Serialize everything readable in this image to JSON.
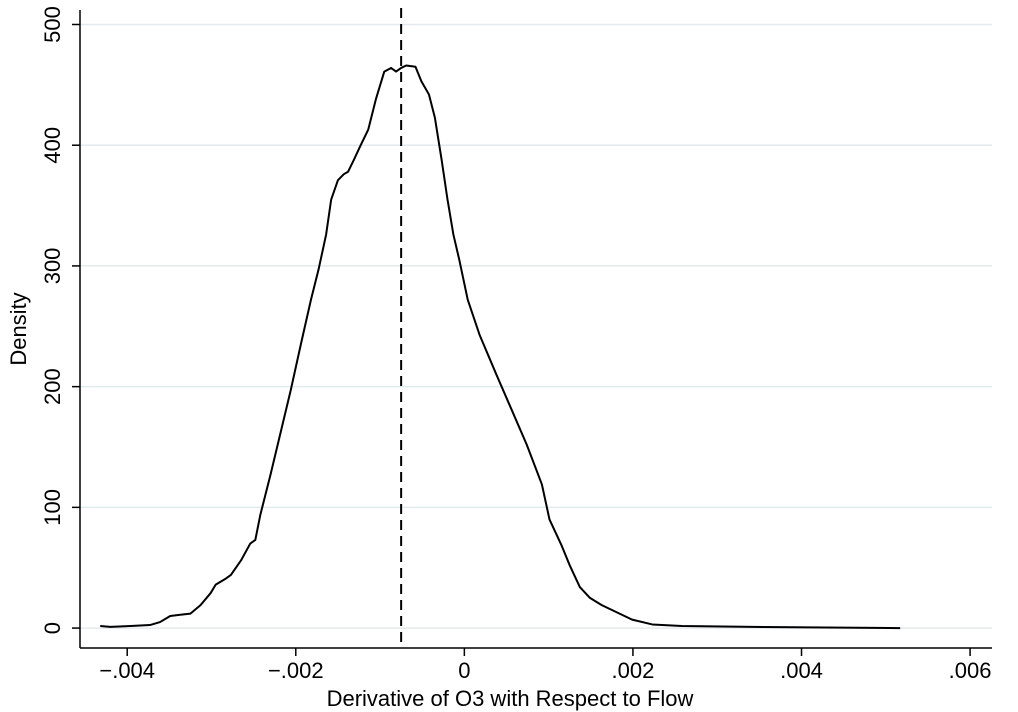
{
  "chart_data": {
    "type": "line",
    "xlabel": "Derivative of O3 with Respect to Flow",
    "ylabel": "Density",
    "xlim": [
      -0.00456,
      0.00626
    ],
    "ylim": [
      -16.5,
      512
    ],
    "xticks": [
      {
        "value": -0.004,
        "label": "−.004"
      },
      {
        "value": -0.002,
        "label": "−.002"
      },
      0,
      {
        "value": 0.002,
        "label": ".002"
      },
      {
        "value": 0.004,
        "label": ".004"
      },
      {
        "value": 0.006,
        "label": ".006"
      }
    ],
    "yticks": [
      0,
      100,
      200,
      300,
      400,
      500
    ],
    "grid": true,
    "reference_line": {
      "x": -0.00075,
      "style": "dashed",
      "color": "#000000"
    },
    "series": [
      {
        "color": "#000000",
        "x": [
          -0.00432,
          -0.0042,
          -0.00396,
          -0.00373,
          -0.00361,
          -0.00349,
          -0.00337,
          -0.00325,
          -0.00313,
          -0.00301,
          -0.00295,
          -0.00283,
          -0.00277,
          -0.00265,
          -0.00254,
          -0.00248,
          -0.00242,
          -0.0023,
          -0.00218,
          -0.00206,
          -0.00194,
          -0.00182,
          -0.00173,
          -0.00164,
          -0.00158,
          -0.0015,
          -0.00143,
          -0.00138,
          -0.00131,
          -0.00123,
          -0.00114,
          -0.00105,
          -0.00095,
          -0.00087,
          -0.00081,
          -0.00075,
          -0.00069,
          -0.00058,
          -0.00051,
          -0.00042,
          -0.00035,
          -0.00027,
          -0.0002,
          -0.00013,
          -6e-05,
          4e-05,
          0.00018,
          0.00038,
          0.00056,
          0.00074,
          0.00092,
          0.00101,
          0.00107,
          0.00115,
          0.00125,
          0.00137,
          0.00149,
          0.00163,
          0.00181,
          0.00199,
          0.00223,
          0.00258,
          0.00342,
          0.00517
        ],
        "values": [
          1.7,
          1,
          1.7,
          2.5,
          5,
          10,
          11,
          12,
          19,
          29,
          36,
          41,
          44,
          56,
          70,
          73,
          94,
          127,
          162,
          197,
          235,
          272,
          297,
          326,
          355,
          371,
          376,
          378,
          388,
          400,
          413,
          438,
          461,
          464,
          461,
          464,
          466,
          465,
          453,
          442,
          423,
          388,
          355,
          326,
          305,
          272,
          243,
          210,
          181,
          152,
          119,
          90,
          81,
          69,
          52,
          34,
          25,
          19,
          13,
          7,
          3,
          1.7,
          1,
          0
        ]
      }
    ]
  }
}
